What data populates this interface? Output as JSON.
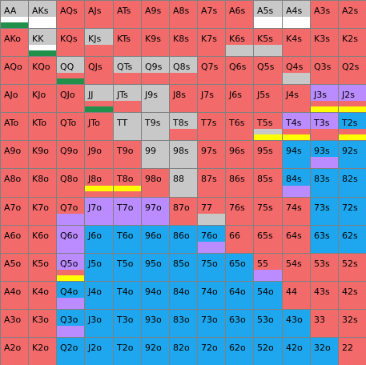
{
  "colors": {
    "R": "#f36a6a",
    "B": "#1ea7ee",
    "G": "#c8c8c8",
    "P": "#bb8cff",
    "Y": "#ffff00",
    "D": "#21904b",
    "W": "#ffffff"
  },
  "grid": {
    "ranks": [
      "A",
      "K",
      "Q",
      "J",
      "T",
      "9",
      "8",
      "7",
      "6",
      "5",
      "4",
      "3",
      "2"
    ],
    "cells": [
      [
        [
          [
            "G",
            0.6
          ],
          [
            "W",
            0.2
          ],
          [
            "D",
            0.2
          ]
        ],
        [
          [
            "G",
            0.6
          ],
          [
            "W",
            0.4
          ]
        ],
        [
          [
            "R",
            1
          ]
        ],
        [
          [
            "R",
            1
          ]
        ],
        [
          [
            "R",
            1
          ]
        ],
        [
          [
            "R",
            1
          ]
        ],
        [
          [
            "R",
            1
          ]
        ],
        [
          [
            "R",
            1
          ]
        ],
        [
          [
            "R",
            1
          ]
        ],
        [
          [
            "G",
            0.6
          ],
          [
            "W",
            0.4
          ]
        ],
        [
          [
            "G",
            0.6
          ],
          [
            "W",
            0.4
          ]
        ],
        [
          [
            "R",
            1
          ]
        ],
        [
          [
            "R",
            1
          ]
        ]
      ],
      [
        [
          [
            "R",
            1
          ]
        ],
        [
          [
            "G",
            0.6
          ],
          [
            "W",
            0.2
          ],
          [
            "D",
            0.2
          ]
        ],
        [
          [
            "R",
            1
          ]
        ],
        [
          [
            "G",
            0.6
          ],
          [
            "R",
            0.4
          ]
        ],
        [
          [
            "R",
            1
          ]
        ],
        [
          [
            "R",
            1
          ]
        ],
        [
          [
            "R",
            1
          ]
        ],
        [
          [
            "R",
            1
          ]
        ],
        [
          [
            "R",
            0.6
          ],
          [
            "G",
            0.4
          ]
        ],
        [
          [
            "R",
            0.6
          ],
          [
            "G",
            0.4
          ]
        ],
        [
          [
            "R",
            1
          ]
        ],
        [
          [
            "R",
            1
          ]
        ],
        [
          [
            "R",
            1
          ]
        ]
      ],
      [
        [
          [
            "R",
            1
          ]
        ],
        [
          [
            "R",
            1
          ]
        ],
        [
          [
            "G",
            0.6
          ],
          [
            "R",
            0.2
          ],
          [
            "D",
            0.2
          ]
        ],
        [
          [
            "R",
            1
          ]
        ],
        [
          [
            "G",
            0.6
          ],
          [
            "R",
            0.4
          ]
        ],
        [
          [
            "G",
            0.6
          ],
          [
            "R",
            0.4
          ]
        ],
        [
          [
            "G",
            0.6
          ],
          [
            "R",
            0.4
          ]
        ],
        [
          [
            "R",
            1
          ]
        ],
        [
          [
            "R",
            1
          ]
        ],
        [
          [
            "R",
            1
          ]
        ],
        [
          [
            "R",
            0.6
          ],
          [
            "G",
            0.4
          ]
        ],
        [
          [
            "R",
            1
          ]
        ],
        [
          [
            "R",
            1
          ]
        ]
      ],
      [
        [
          [
            "R",
            1
          ]
        ],
        [
          [
            "R",
            1
          ]
        ],
        [
          [
            "R",
            1
          ]
        ],
        [
          [
            "G",
            0.6
          ],
          [
            "R",
            0.2
          ],
          [
            "D",
            0.2
          ]
        ],
        [
          [
            "G",
            0.6
          ],
          [
            "R",
            0.4
          ]
        ],
        [
          [
            "G",
            1
          ]
        ],
        [
          [
            "R",
            1
          ]
        ],
        [
          [
            "R",
            1
          ]
        ],
        [
          [
            "R",
            1
          ]
        ],
        [
          [
            "R",
            1
          ]
        ],
        [
          [
            "R",
            1
          ]
        ],
        [
          [
            "P",
            0.6
          ],
          [
            "R",
            0.2
          ],
          [
            "Y",
            0.2
          ]
        ],
        [
          [
            "P",
            0.6
          ],
          [
            "R",
            0.2
          ],
          [
            "Y",
            0.2
          ]
        ]
      ],
      [
        [
          [
            "R",
            1
          ]
        ],
        [
          [
            "R",
            1
          ]
        ],
        [
          [
            "R",
            1
          ]
        ],
        [
          [
            "R",
            1
          ]
        ],
        [
          [
            "G",
            1
          ]
        ],
        [
          [
            "G",
            1
          ]
        ],
        [
          [
            "G",
            0.6
          ],
          [
            "R",
            0.4
          ]
        ],
        [
          [
            "R",
            1
          ]
        ],
        [
          [
            "R",
            1
          ]
        ],
        [
          [
            "R",
            0.6
          ],
          [
            "G",
            0.2
          ],
          [
            "Y",
            0.2
          ]
        ],
        [
          [
            "P",
            0.6
          ],
          [
            "R",
            0.2
          ],
          [
            "Y",
            0.2
          ]
        ],
        [
          [
            "P",
            0.6
          ],
          [
            "R",
            0.4
          ]
        ],
        [
          [
            "B",
            0.6
          ],
          [
            "R",
            0.2
          ],
          [
            "Y",
            0.2
          ]
        ]
      ],
      [
        [
          [
            "R",
            1
          ]
        ],
        [
          [
            "R",
            1
          ]
        ],
        [
          [
            "R",
            1
          ]
        ],
        [
          [
            "R",
            1
          ]
        ],
        [
          [
            "R",
            1
          ]
        ],
        [
          [
            "G",
            1
          ]
        ],
        [
          [
            "G",
            1
          ]
        ],
        [
          [
            "R",
            1
          ]
        ],
        [
          [
            "R",
            1
          ]
        ],
        [
          [
            "R",
            1
          ]
        ],
        [
          [
            "B",
            1
          ]
        ],
        [
          [
            "B",
            0.6
          ],
          [
            "P",
            0.4
          ]
        ],
        [
          [
            "B",
            1
          ]
        ]
      ],
      [
        [
          [
            "R",
            1
          ]
        ],
        [
          [
            "R",
            1
          ]
        ],
        [
          [
            "R",
            1
          ]
        ],
        [
          [
            "R",
            0.6
          ],
          [
            "Y",
            0.2
          ],
          [
            "R",
            0.2
          ]
        ],
        [
          [
            "R",
            0.6
          ],
          [
            "Y",
            0.2
          ],
          [
            "R",
            0.2
          ]
        ],
        [
          [
            "R",
            1
          ]
        ],
        [
          [
            "G",
            1
          ]
        ],
        [
          [
            "R",
            1
          ]
        ],
        [
          [
            "R",
            1
          ]
        ],
        [
          [
            "R",
            1
          ]
        ],
        [
          [
            "B",
            0.6
          ],
          [
            "P",
            0.4
          ]
        ],
        [
          [
            "B",
            1
          ]
        ],
        [
          [
            "B",
            1
          ]
        ]
      ],
      [
        [
          [
            "R",
            1
          ]
        ],
        [
          [
            "R",
            1
          ]
        ],
        [
          [
            "R",
            0.6
          ],
          [
            "P",
            0.4
          ]
        ],
        [
          [
            "P",
            1
          ]
        ],
        [
          [
            "P",
            1
          ]
        ],
        [
          [
            "P",
            1
          ]
        ],
        [
          [
            "R",
            1
          ]
        ],
        [
          [
            "R",
            0.6
          ],
          [
            "G",
            0.4
          ]
        ],
        [
          [
            "R",
            1
          ]
        ],
        [
          [
            "R",
            1
          ]
        ],
        [
          [
            "R",
            1
          ]
        ],
        [
          [
            "B",
            1
          ]
        ],
        [
          [
            "B",
            1
          ]
        ]
      ],
      [
        [
          [
            "R",
            1
          ]
        ],
        [
          [
            "R",
            1
          ]
        ],
        [
          [
            "P",
            1
          ]
        ],
        [
          [
            "B",
            1
          ]
        ],
        [
          [
            "B",
            1
          ]
        ],
        [
          [
            "B",
            1
          ]
        ],
        [
          [
            "B",
            1
          ]
        ],
        [
          [
            "B",
            0.6
          ],
          [
            "P",
            0.4
          ]
        ],
        [
          [
            "R",
            1
          ]
        ],
        [
          [
            "R",
            1
          ]
        ],
        [
          [
            "R",
            1
          ]
        ],
        [
          [
            "B",
            1
          ]
        ],
        [
          [
            "B",
            1
          ]
        ]
      ],
      [
        [
          [
            "R",
            1
          ]
        ],
        [
          [
            "R",
            1
          ]
        ],
        [
          [
            "P",
            0.6
          ],
          [
            "R",
            0.2
          ],
          [
            "Y",
            0.2
          ]
        ],
        [
          [
            "B",
            1
          ]
        ],
        [
          [
            "B",
            1
          ]
        ],
        [
          [
            "B",
            1
          ]
        ],
        [
          [
            "B",
            1
          ]
        ],
        [
          [
            "B",
            1
          ]
        ],
        [
          [
            "B",
            1
          ]
        ],
        [
          [
            "R",
            0.6
          ],
          [
            "P",
            0.4
          ]
        ],
        [
          [
            "R",
            1
          ]
        ],
        [
          [
            "R",
            1
          ]
        ],
        [
          [
            "R",
            1
          ]
        ]
      ],
      [
        [
          [
            "R",
            1
          ]
        ],
        [
          [
            "R",
            1
          ]
        ],
        [
          [
            "B",
            0.6
          ],
          [
            "P",
            0.4
          ]
        ],
        [
          [
            "B",
            1
          ]
        ],
        [
          [
            "B",
            1
          ]
        ],
        [
          [
            "B",
            1
          ]
        ],
        [
          [
            "B",
            1
          ]
        ],
        [
          [
            "B",
            1
          ]
        ],
        [
          [
            "B",
            1
          ]
        ],
        [
          [
            "B",
            1
          ]
        ],
        [
          [
            "R",
            1
          ]
        ],
        [
          [
            "R",
            1
          ]
        ],
        [
          [
            "R",
            1
          ]
        ]
      ],
      [
        [
          [
            "R",
            1
          ]
        ],
        [
          [
            "R",
            1
          ]
        ],
        [
          [
            "B",
            0.6
          ],
          [
            "P",
            0.4
          ]
        ],
        [
          [
            "B",
            1
          ]
        ],
        [
          [
            "B",
            1
          ]
        ],
        [
          [
            "B",
            1
          ]
        ],
        [
          [
            "B",
            1
          ]
        ],
        [
          [
            "B",
            1
          ]
        ],
        [
          [
            "B",
            1
          ]
        ],
        [
          [
            "B",
            1
          ]
        ],
        [
          [
            "B",
            1
          ]
        ],
        [
          [
            "R",
            1
          ]
        ],
        [
          [
            "R",
            1
          ]
        ]
      ],
      [
        [
          [
            "R",
            1
          ]
        ],
        [
          [
            "R",
            1
          ]
        ],
        [
          [
            "B",
            1
          ]
        ],
        [
          [
            "B",
            1
          ]
        ],
        [
          [
            "B",
            1
          ]
        ],
        [
          [
            "B",
            1
          ]
        ],
        [
          [
            "B",
            1
          ]
        ],
        [
          [
            "B",
            1
          ]
        ],
        [
          [
            "B",
            1
          ]
        ],
        [
          [
            "B",
            1
          ]
        ],
        [
          [
            "B",
            1
          ]
        ],
        [
          [
            "B",
            1
          ]
        ],
        [
          [
            "R",
            1
          ]
        ]
      ]
    ]
  }
}
